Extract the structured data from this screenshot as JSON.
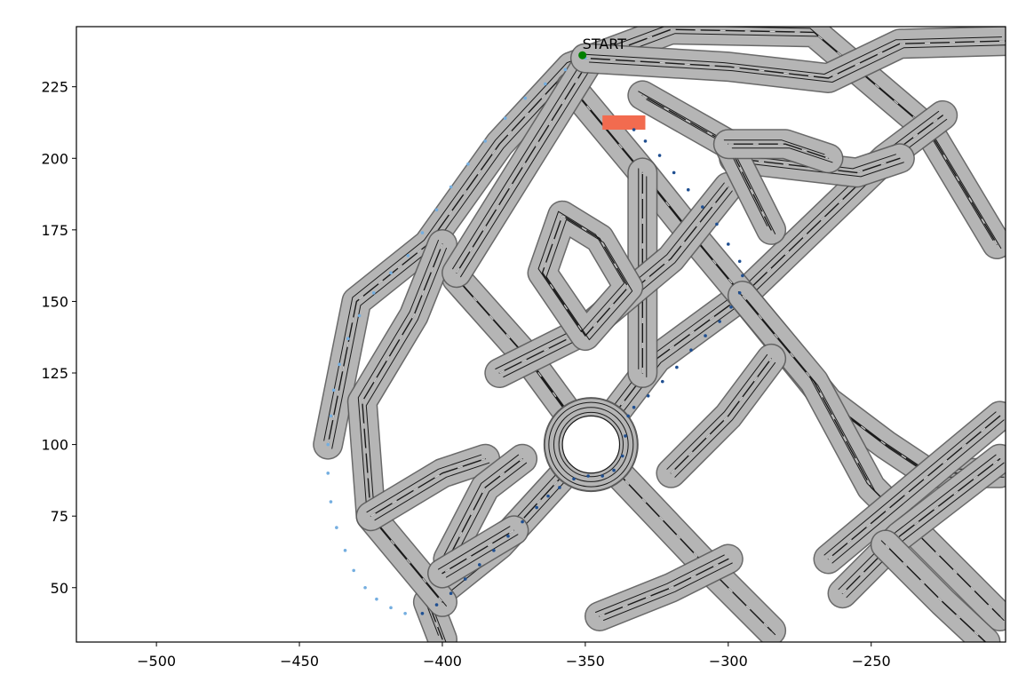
{
  "chart_data": {
    "type": "scatter",
    "title": "",
    "xlabel": "",
    "ylabel": "",
    "xlim": [
      -528,
      -203
    ],
    "ylim": [
      31,
      246
    ],
    "xticks": [
      -500,
      -450,
      -400,
      -350,
      -300,
      -250
    ],
    "yticks": [
      50,
      75,
      100,
      125,
      150,
      175,
      200,
      225
    ],
    "grid": false,
    "legend": "none",
    "annotations": [
      {
        "text": "START",
        "x": -351,
        "y": 237
      }
    ],
    "start_point": {
      "x": -351,
      "y": 236,
      "color": "#008000"
    },
    "goal_region": {
      "x0": -344,
      "x1": -329,
      "y0": 210,
      "y1": 215,
      "color": "#f26b4f"
    },
    "road_map": {
      "description_color": "#b5b5b5",
      "lane_color": "#1a1a1a",
      "roundabout": {
        "cx": -348,
        "cy": 100,
        "r_inner": 10,
        "r_outer": 16
      },
      "roads": [
        [
          [
            -440,
            100
          ],
          [
            -430,
            150
          ],
          [
            -405,
            170
          ],
          [
            -380,
            205
          ],
          [
            -355,
            232
          ],
          [
            -320,
            245
          ],
          [
            -270,
            244
          ],
          [
            -230,
            210
          ],
          [
            -206,
            170
          ]
        ],
        [
          [
            -395,
            158
          ],
          [
            -370,
            130
          ],
          [
            -348,
            100
          ]
        ],
        [
          [
            -348,
            100
          ],
          [
            -310,
            60
          ],
          [
            -285,
            35
          ]
        ],
        [
          [
            -348,
            100
          ],
          [
            -380,
            65
          ],
          [
            -405,
            45
          ],
          [
            -400,
            32
          ]
        ],
        [
          [
            -348,
            100
          ],
          [
            -325,
            130
          ],
          [
            -295,
            152
          ],
          [
            -245,
            200
          ],
          [
            -225,
            215
          ]
        ],
        [
          [
            -355,
            225
          ],
          [
            -330,
            195
          ],
          [
            -310,
            170
          ],
          [
            -295,
            152
          ],
          [
            -265,
            115
          ],
          [
            -245,
            100
          ],
          [
            -230,
            90
          ],
          [
            -205,
            90
          ]
        ],
        [
          [
            -295,
            152
          ],
          [
            -270,
            122
          ],
          [
            -250,
            85
          ],
          [
            -205,
            40
          ]
        ],
        [
          [
            -265,
            60
          ],
          [
            -235,
            85
          ],
          [
            -205,
            110
          ]
        ],
        [
          [
            -260,
            48
          ],
          [
            -240,
            68
          ],
          [
            -205,
            95
          ]
        ],
        [
          [
            -245,
            65
          ],
          [
            -225,
            45
          ],
          [
            -210,
            31
          ]
        ],
        [
          [
            -400,
            170
          ],
          [
            -410,
            145
          ],
          [
            -428,
            115
          ],
          [
            -425,
            75
          ],
          [
            -400,
            45
          ]
        ],
        [
          [
            -395,
            160
          ],
          [
            -370,
            200
          ],
          [
            -350,
            232
          ]
        ],
        [
          [
            -330,
            125
          ],
          [
            -330,
            195
          ]
        ],
        [
          [
            -380,
            125
          ],
          [
            -350,
            140
          ],
          [
            -320,
            165
          ],
          [
            -300,
            190
          ]
        ],
        [
          [
            -298,
            200
          ],
          [
            -255,
            195
          ],
          [
            -240,
            200
          ]
        ],
        [
          [
            -425,
            75
          ],
          [
            -400,
            90
          ],
          [
            -385,
            95
          ]
        ],
        [
          [
            -358,
            180
          ],
          [
            -365,
            160
          ],
          [
            -350,
            138
          ],
          [
            -335,
            155
          ],
          [
            -345,
            172
          ],
          [
            -358,
            180
          ]
        ],
        [
          [
            -350,
            235
          ],
          [
            -300,
            232
          ],
          [
            -265,
            228
          ],
          [
            -240,
            240
          ],
          [
            -203,
            241
          ]
        ],
        [
          [
            -330,
            222
          ],
          [
            -300,
            205
          ],
          [
            -285,
            175
          ]
        ],
        [
          [
            -300,
            205
          ],
          [
            -280,
            205
          ],
          [
            -265,
            200
          ]
        ],
        [
          [
            -320,
            90
          ],
          [
            -300,
            110
          ],
          [
            -285,
            130
          ]
        ],
        [
          [
            -398,
            60
          ],
          [
            -385,
            85
          ],
          [
            -372,
            95
          ]
        ],
        [
          [
            -375,
            70
          ],
          [
            -400,
            55
          ]
        ],
        [
          [
            -345,
            40
          ],
          [
            -320,
            50
          ],
          [
            -300,
            60
          ]
        ]
      ]
    },
    "series": [
      {
        "color": "#74aee0",
        "x": [
          -350,
          -357,
          -364,
          -371,
          -378,
          -385,
          -391,
          -397,
          -402,
          -407,
          -412,
          -418,
          -424,
          -429,
          -433,
          -436,
          -438,
          -439,
          -440,
          -440,
          -439,
          -437,
          -434,
          -431,
          -427,
          -423,
          -418,
          -413,
          -407
        ],
        "y": [
          235,
          231,
          226,
          221,
          214,
          206,
          198,
          190,
          182,
          174,
          166,
          160,
          153,
          145,
          137,
          128,
          119,
          110,
          100,
          90,
          80,
          71,
          63,
          56,
          50,
          46,
          43,
          41,
          41
        ]
      },
      {
        "color": "#1f4f91",
        "x": [
          -407,
          -402,
          -397,
          -392,
          -387,
          -382,
          -377,
          -372,
          -367,
          -363,
          -359,
          -354,
          -349,
          -344,
          -340,
          -337,
          -336,
          -335,
          -333,
          -328,
          -323,
          -318,
          -313,
          -308,
          -303,
          -299,
          -296,
          -295,
          -296,
          -300,
          -304,
          -309,
          -314,
          -319,
          -324,
          -329,
          -333
        ],
        "y": [
          41,
          44,
          48,
          53,
          58,
          63,
          68,
          73,
          78,
          82,
          85,
          88,
          89,
          89,
          91,
          96,
          103,
          110,
          113,
          117,
          122,
          127,
          133,
          138,
          143,
          148,
          153,
          159,
          164,
          170,
          177,
          183,
          189,
          195,
          201,
          206,
          210
        ]
      }
    ]
  }
}
